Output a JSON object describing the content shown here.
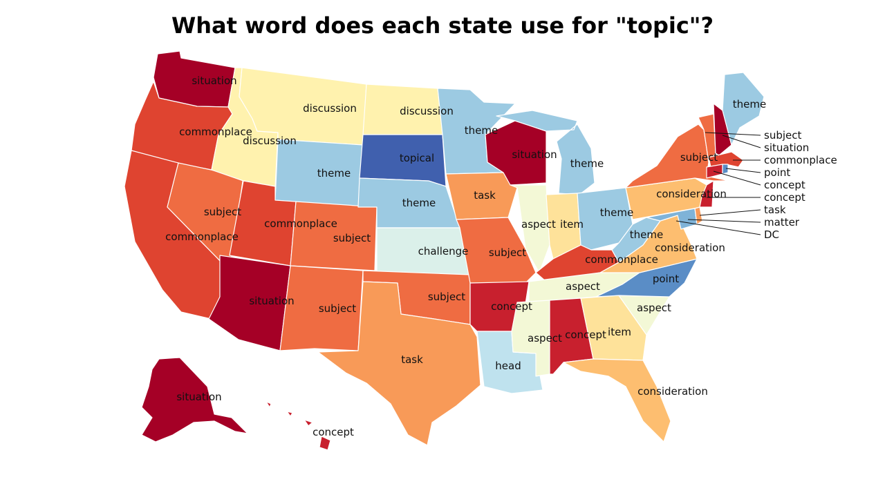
{
  "title": "What word does each state use for \"topic\"?",
  "colors": {
    "situation": "#a50026",
    "concept": "#c8202e",
    "commonplace": "#df4430",
    "subject": "#ef6c42",
    "task": "#f89a58",
    "consideration": "#fdbe70",
    "item": "#fee29a",
    "discussion": "#fff2ae",
    "aspect": "#f3f8d6",
    "challenge": "#dbf0ea",
    "head": "#bfe2ee",
    "theme": "#9ccae2",
    "matter": "#7fb3d8",
    "point": "#5a8dc6",
    "topical": "#4060ae",
    "DC": "#d73027"
  },
  "states": {
    "WA": "situation",
    "OR": "commonplace",
    "CA": "commonplace",
    "NV": "subject",
    "ID": "discussion",
    "MT": "discussion",
    "WY": "theme",
    "UT": "commonplace",
    "AZ": "situation",
    "CO": "subject",
    "NM": "subject",
    "ND": "discussion",
    "SD": "topical",
    "NE": "theme",
    "KS": "challenge",
    "OK": "subject",
    "TX": "task",
    "MN": "theme",
    "IA": "task",
    "MO": "subject",
    "AR": "concept",
    "LA": "head",
    "WI": "situation",
    "IL": "aspect",
    "MI": "theme",
    "IN": "item",
    "OH": "theme",
    "KY": "commonplace",
    "TN": "aspect",
    "MS": "aspect",
    "AL": "concept",
    "GA": "item",
    "FL": "consideration",
    "SC": "aspect",
    "NC": "point",
    "VA": "consideration",
    "WV": "theme",
    "PA": "consideration",
    "NY": "subject",
    "ME": "theme",
    "VT": "subject",
    "NH": "situation",
    "MA": "commonplace",
    "RI": "point",
    "CT": "concept",
    "NJ": "concept",
    "DE": "task",
    "MD": "matter",
    "AK": "situation",
    "HI": "concept"
  },
  "labels": {
    "WA": "situation",
    "OR": "commonplace",
    "ID": "discussion",
    "MT": "discussion",
    "ND": "discussion",
    "CA": "commonplace",
    "NV": "subject",
    "UT": "commonplace",
    "AZ": "situation",
    "WY": "theme",
    "CO": "subject",
    "NM": "subject",
    "SD": "topical",
    "NE": "theme",
    "KS": "challenge",
    "OK": "subject",
    "TX": "task",
    "MN": "theme",
    "IA": "task",
    "MO": "subject",
    "AR": "concept",
    "LA": "head",
    "WI": "situation",
    "IL": "aspect",
    "MI": "theme",
    "IN": "item",
    "OH": "theme",
    "KY": "commonplace",
    "TN": "aspect",
    "MS": "aspect",
    "AL": "concept",
    "GA": "item",
    "FL": "consideration",
    "SC": "aspect",
    "NC": "point",
    "VA": "consideration",
    "WV": "theme",
    "PA": "consideration",
    "NY": "subject",
    "ME": "theme",
    "AK": "situation",
    "HI": "concept"
  },
  "callouts": [
    "subject",
    "situation",
    "commonplace",
    "point",
    "concept",
    "concept",
    "task",
    "matter",
    "DC"
  ]
}
